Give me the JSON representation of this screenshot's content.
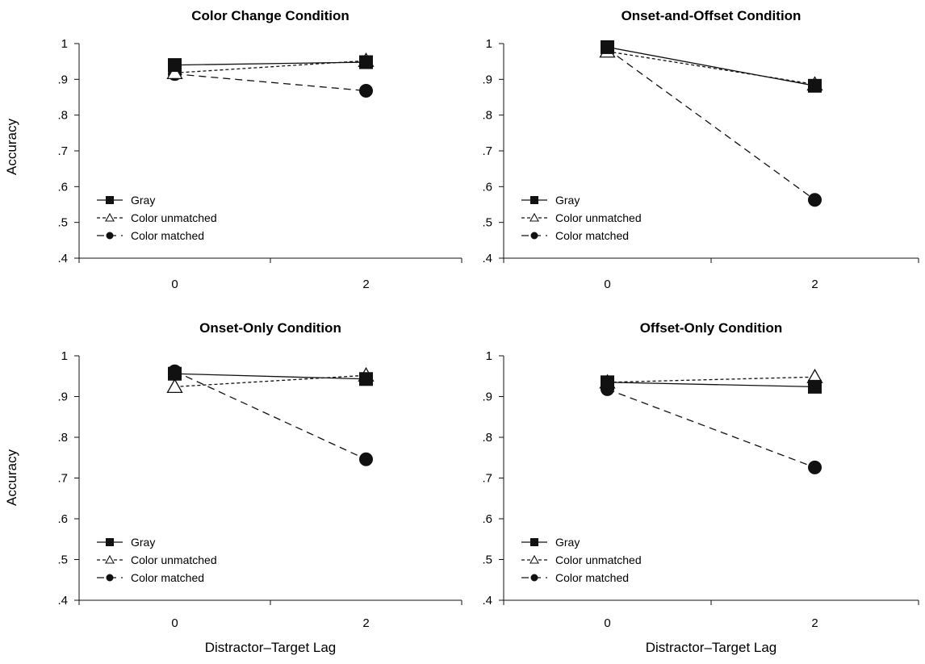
{
  "figure": {
    "ylabel": "Accuracy",
    "xlabel": "Distractor–Target Lag"
  },
  "chart_data": [
    {
      "type": "line",
      "title": "Color Change Condition",
      "xlabel": "",
      "ylabel": "Accuracy",
      "x": [
        "0",
        "2"
      ],
      "ylim": [
        0.4,
        1.0
      ],
      "yticks": [
        "1",
        ".9",
        ".8",
        ".7",
        ".6",
        ".5",
        ".4"
      ],
      "legend_position": "bottom-left",
      "series": [
        {
          "name": "Gray",
          "values": [
            0.94,
            0.948
          ],
          "marker": "square-filled",
          "line": "solid"
        },
        {
          "name": "Color unmatched",
          "values": [
            0.918,
            0.952
          ],
          "marker": "triangle-open",
          "line": "dotted"
        },
        {
          "name": "Color matched",
          "values": [
            0.915,
            0.868
          ],
          "marker": "circle-filled",
          "line": "dashed"
        }
      ]
    },
    {
      "type": "line",
      "title": "Onset-and-Offset Condition",
      "xlabel": "",
      "ylabel": "",
      "x": [
        "0",
        "2"
      ],
      "ylim": [
        0.4,
        1.0
      ],
      "yticks": [
        "1",
        ".9",
        ".8",
        ".7",
        ".6",
        ".5",
        ".4"
      ],
      "legend_position": "bottom-left",
      "series": [
        {
          "name": "Gray",
          "values": [
            0.99,
            0.882
          ],
          "marker": "square-filled",
          "line": "solid"
        },
        {
          "name": "Color unmatched",
          "values": [
            0.978,
            0.886
          ],
          "marker": "triangle-open",
          "line": "dotted"
        },
        {
          "name": "Color matched",
          "values": [
            0.985,
            0.563
          ],
          "marker": "circle-filled",
          "line": "dashed"
        }
      ]
    },
    {
      "type": "line",
      "title": "Onset-Only Condition",
      "xlabel": "Distractor–Target Lag",
      "ylabel": "Accuracy",
      "x": [
        "0",
        "2"
      ],
      "ylim": [
        0.4,
        1.0
      ],
      "yticks": [
        "1",
        ".9",
        ".8",
        ".7",
        ".6",
        ".5",
        ".4"
      ],
      "legend_position": "bottom-left",
      "series": [
        {
          "name": "Gray",
          "values": [
            0.956,
            0.943
          ],
          "marker": "square-filled",
          "line": "solid"
        },
        {
          "name": "Color unmatched",
          "values": [
            0.924,
            0.952
          ],
          "marker": "triangle-open",
          "line": "dotted"
        },
        {
          "name": "Color matched",
          "values": [
            0.962,
            0.746
          ],
          "marker": "circle-filled",
          "line": "dashed"
        }
      ]
    },
    {
      "type": "line",
      "title": "Offset-Only Condition",
      "xlabel": "Distractor–Target Lag",
      "ylabel": "",
      "x": [
        "0",
        "2"
      ],
      "ylim": [
        0.4,
        1.0
      ],
      "yticks": [
        "1",
        ".9",
        ".8",
        ".7",
        ".6",
        ".5",
        ".4"
      ],
      "legend_position": "bottom-left",
      "series": [
        {
          "name": "Gray",
          "values": [
            0.935,
            0.924
          ],
          "marker": "square-filled",
          "line": "solid"
        },
        {
          "name": "Color unmatched",
          "values": [
            0.935,
            0.948
          ],
          "marker": "triangle-open",
          "line": "dotted"
        },
        {
          "name": "Color matched",
          "values": [
            0.918,
            0.726
          ],
          "marker": "circle-filled",
          "line": "dashed"
        }
      ]
    }
  ]
}
